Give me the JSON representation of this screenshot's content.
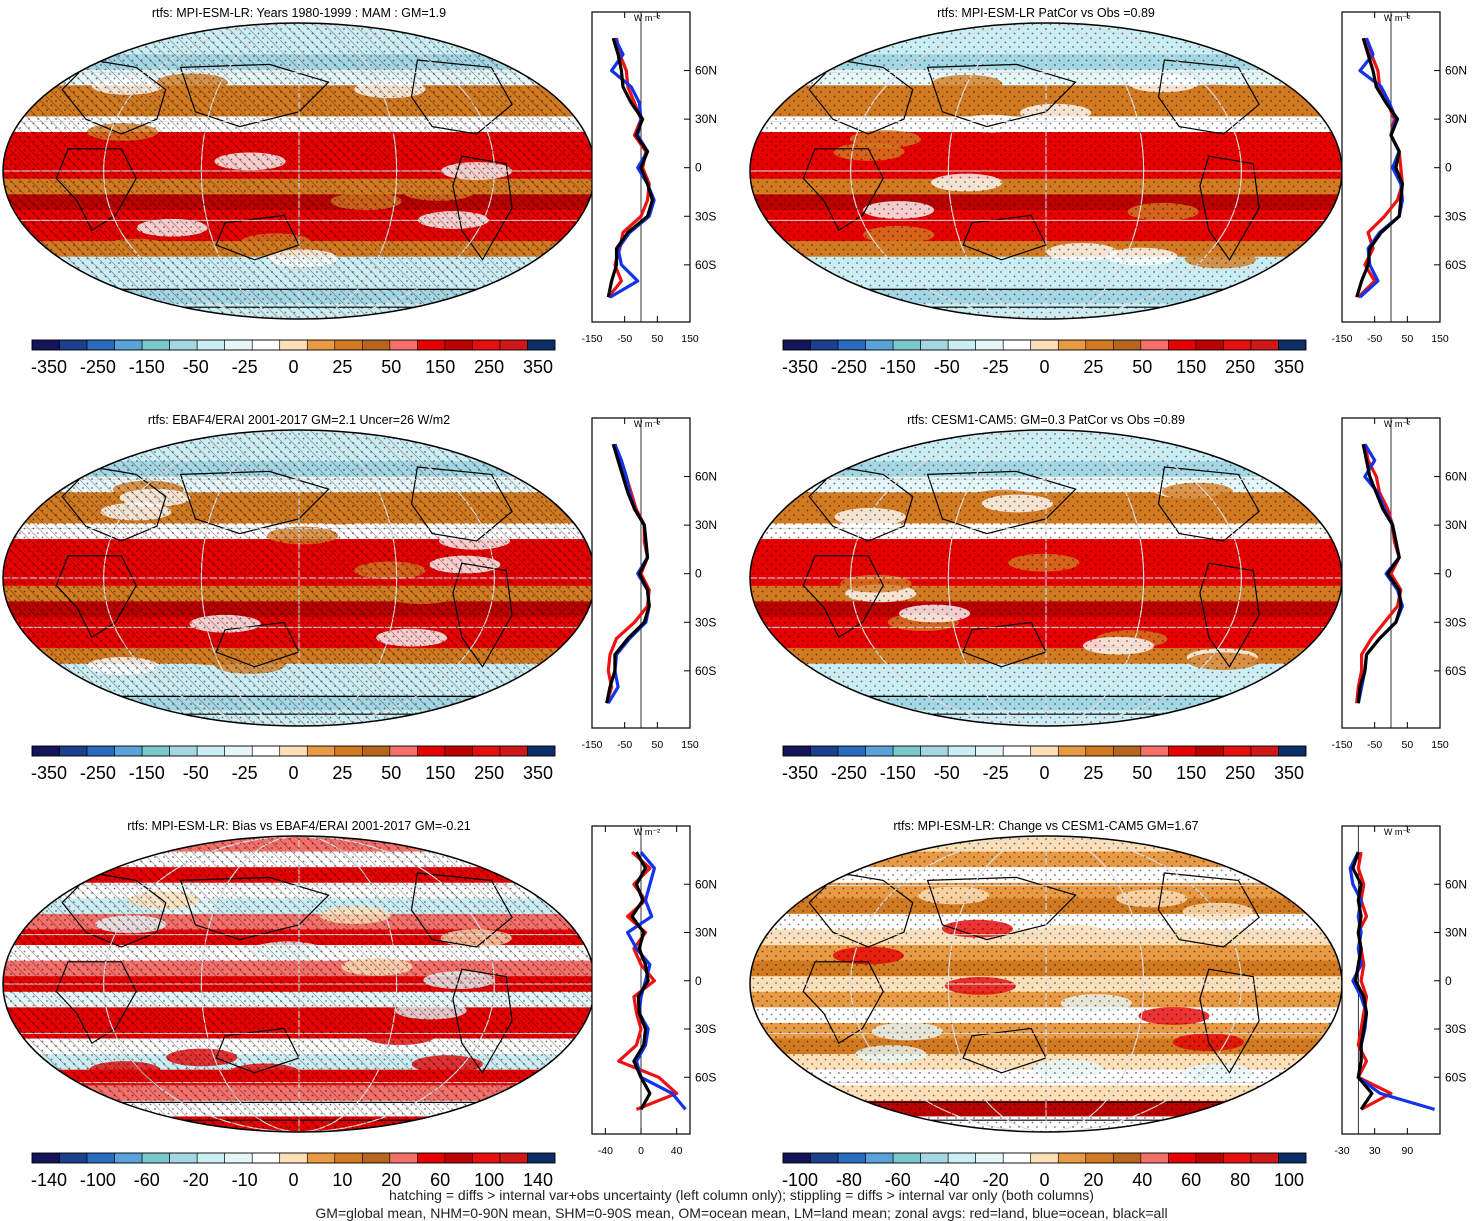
{
  "footer": {
    "line1": "hatching = diffs > internal var+obs uncertainty (left column only); stippling = diffs > internal var only (both columns)",
    "line2": "GM=global mean, NHM=0-90N mean, SHM=0-90S mean, OM=ocean mean, LM=land mean; zonal avgs: red=land, blue=ocean, black=all"
  },
  "colors": {
    "land": "#ee1111",
    "ocean": "#1133ee",
    "all": "#000000",
    "scale": [
      "#14145a",
      "#1c3f8e",
      "#2a6cc0",
      "#5aa2d9",
      "#7cc7cc",
      "#a4d6e4",
      "#cbeef5",
      "#e6f7fa",
      "#ffffff",
      "#fde0b8",
      "#e89a45",
      "#d27a22",
      "#b8651e",
      "#f5706a",
      "#e60000",
      "#bb0000",
      "#e61010",
      "#d01818",
      "#0d2d68"
    ],
    "land_mass": "#ffffff"
  },
  "chart_data": [
    {
      "type": "map",
      "title": "rtfs: MPI-ESM-LR: Years 1980-1999 : MAM : GM=1.9",
      "pattern": "clim",
      "colorbar": [
        "-350",
        "-250",
        "-150",
        "-50",
        "-25",
        "0",
        "25",
        "50",
        "150",
        "250",
        "350"
      ],
      "zonal": {
        "units": "W m⁻²",
        "xlim": [
          -150,
          150
        ],
        "xticks": [
          "-150",
          "-50",
          "50",
          "150"
        ],
        "yticks": [
          "60N",
          "30N",
          "0",
          "30S",
          "60S"
        ],
        "lat": [
          80,
          70,
          60,
          50,
          40,
          30,
          20,
          10,
          0,
          -10,
          -20,
          -30,
          -40,
          -50,
          -60,
          -70,
          -80
        ],
        "all": [
          -85,
          -70,
          -60,
          -55,
          -30,
          5,
          -15,
          20,
          0,
          20,
          35,
          20,
          -40,
          -75,
          -75,
          -90,
          -100
        ],
        "land": [
          -75,
          -65,
          -45,
          -40,
          -20,
          0,
          -20,
          15,
          5,
          25,
          20,
          0,
          -55,
          -65,
          -80,
          -60,
          -100
        ],
        "ocean": [
          -80,
          -55,
          -90,
          -30,
          -5,
          0,
          -10,
          20,
          -10,
          20,
          40,
          25,
          -35,
          -70,
          -60,
          -10,
          -95
        ]
      }
    },
    {
      "type": "map",
      "title": "rtfs: MPI-ESM-LR PatCor vs Obs =0.89",
      "pattern": "clim",
      "colorbar": [
        "-350",
        "-250",
        "-150",
        "-50",
        "-25",
        "0",
        "25",
        "50",
        "150",
        "250",
        "350"
      ],
      "zonal": {
        "units": "W m⁻²",
        "xlim": [
          -150,
          150
        ],
        "xticks": [
          "-150",
          "-50",
          "50",
          "150"
        ],
        "yticks": [
          "60N",
          "30N",
          "0",
          "30S",
          "60S"
        ],
        "lat": [
          80,
          70,
          60,
          50,
          40,
          30,
          20,
          10,
          0,
          -10,
          -20,
          -30,
          -40,
          -50,
          -60,
          -70,
          -80
        ],
        "all": [
          -85,
          -70,
          -55,
          -45,
          -15,
          20,
          0,
          25,
          15,
          35,
          30,
          25,
          -30,
          -65,
          -70,
          -90,
          -105
        ],
        "land": [
          -80,
          -60,
          -40,
          -35,
          -10,
          10,
          0,
          25,
          30,
          35,
          20,
          -20,
          -70,
          -55,
          -80,
          -50,
          -100
        ],
        "ocean": [
          -75,
          -55,
          -95,
          -30,
          -5,
          15,
          0,
          25,
          5,
          30,
          35,
          25,
          -35,
          -70,
          -65,
          -40,
          -95
        ]
      }
    },
    {
      "type": "map",
      "title": "rtfs: EBAF4/ERAI 2001-2017 GM=2.1 Uncer=26 W/m2",
      "pattern": "clim",
      "colorbar": [
        "-350",
        "-250",
        "-150",
        "-50",
        "-25",
        "0",
        "25",
        "50",
        "150",
        "250",
        "350"
      ],
      "zonal": {
        "units": "W m⁻²",
        "xlim": [
          -150,
          150
        ],
        "xticks": [
          "-150",
          "-50",
          "50",
          "150"
        ],
        "yticks": [
          "60N",
          "30N",
          "0",
          "30S",
          "60S"
        ],
        "lat": [
          80,
          70,
          60,
          50,
          40,
          30,
          20,
          10,
          0,
          -10,
          -20,
          -30,
          -40,
          -50,
          -60,
          -70,
          -80
        ],
        "all": [
          -85,
          -70,
          -55,
          -40,
          -20,
          10,
          15,
          20,
          -5,
          20,
          25,
          10,
          -40,
          -80,
          -80,
          -95,
          -105
        ],
        "land": [
          -80,
          -65,
          -45,
          -30,
          -15,
          10,
          10,
          20,
          0,
          25,
          20,
          -20,
          -75,
          -95,
          -100,
          -90,
          -105
        ],
        "ocean": [
          -80,
          -60,
          -45,
          -35,
          -20,
          10,
          15,
          20,
          -10,
          20,
          25,
          15,
          -35,
          -75,
          -80,
          -70,
          -100
        ]
      }
    },
    {
      "type": "map",
      "title": "rtfs: CESM1-CAM5: GM=0.3 PatCor vs Obs =0.89",
      "pattern": "clim",
      "colorbar": [
        "-350",
        "-250",
        "-150",
        "-50",
        "-25",
        "0",
        "25",
        "50",
        "150",
        "250",
        "350"
      ],
      "zonal": {
        "units": "W m⁻²",
        "xlim": [
          -150,
          150
        ],
        "xticks": [
          "-150",
          "-50",
          "50",
          "150"
        ],
        "yticks": [
          "60N",
          "30N",
          "0",
          "30S",
          "60S"
        ],
        "lat": [
          80,
          70,
          60,
          50,
          40,
          30,
          20,
          10,
          0,
          -10,
          -20,
          -30,
          -40,
          -50,
          -60,
          -70,
          -80
        ],
        "all": [
          -85,
          -75,
          -65,
          -45,
          -25,
          5,
          15,
          25,
          -10,
          25,
          30,
          15,
          -35,
          -75,
          -80,
          -95,
          -100
        ],
        "land": [
          -80,
          -70,
          -45,
          -35,
          -10,
          5,
          10,
          25,
          0,
          30,
          20,
          -20,
          -60,
          -90,
          -90,
          -100,
          -105
        ],
        "ocean": [
          -80,
          -50,
          -80,
          -40,
          -20,
          5,
          15,
          25,
          -15,
          20,
          35,
          15,
          -35,
          -75,
          -80,
          -90,
          -100
        ]
      }
    },
    {
      "type": "map",
      "title": "rtfs: MPI-ESM-LR: Bias vs EBAF4/ERAI 2001-2017 GM=-0.21",
      "pattern": "diff",
      "colorbar": [
        "-140",
        "-100",
        "-60",
        "-20",
        "-10",
        "0",
        "10",
        "20",
        "60",
        "100",
        "140"
      ],
      "zonal": {
        "units": "W m⁻²",
        "xlim": [
          -55,
          55
        ],
        "xticks": [
          "-40",
          "0",
          "40"
        ],
        "yticks": [
          "60N",
          "30N",
          "0",
          "30S",
          "60S"
        ],
        "lat": [
          80,
          70,
          60,
          50,
          40,
          30,
          20,
          10,
          0,
          -10,
          -20,
          -30,
          -40,
          -50,
          -60,
          -70,
          -80
        ],
        "all": [
          -5,
          5,
          -5,
          2,
          -10,
          3,
          -2,
          5,
          8,
          -3,
          -2,
          5,
          3,
          -8,
          0,
          10,
          0
        ],
        "land": [
          -10,
          10,
          -8,
          5,
          -15,
          5,
          -8,
          0,
          15,
          -8,
          -5,
          0,
          -5,
          -25,
          20,
          40,
          -5
        ],
        "ocean": [
          0,
          15,
          10,
          5,
          12,
          -15,
          -5,
          10,
          5,
          0,
          -2,
          8,
          5,
          -5,
          0,
          35,
          50
        ]
      }
    },
    {
      "type": "map",
      "title": "rtfs: MPI-ESM-LR: Change vs CESM1-CAM5 GM=1.67",
      "pattern": "diff",
      "colorbar": [
        "-100",
        "-80",
        "-60",
        "-40",
        "-20",
        "0",
        "20",
        "40",
        "60",
        "80",
        "100"
      ],
      "zonal": {
        "units": "W m⁻²",
        "xlim": [
          -30,
          150
        ],
        "xticks": [
          "-30",
          "30",
          "90"
        ],
        "yticks": [
          "60N",
          "30N",
          "0",
          "30S",
          "60S"
        ],
        "lat": [
          80,
          70,
          60,
          50,
          40,
          30,
          20,
          10,
          0,
          -10,
          -20,
          -30,
          -40,
          -50,
          -60,
          -70,
          -80
        ],
        "all": [
          0,
          -10,
          5,
          0,
          5,
          0,
          5,
          0,
          -5,
          10,
          15,
          10,
          5,
          5,
          0,
          25,
          5
        ],
        "land": [
          5,
          0,
          10,
          5,
          15,
          0,
          5,
          10,
          5,
          15,
          10,
          5,
          0,
          15,
          0,
          60,
          5
        ],
        "ocean": [
          0,
          -15,
          -10,
          5,
          0,
          5,
          0,
          5,
          -10,
          5,
          15,
          12,
          5,
          5,
          0,
          40,
          140
        ]
      }
    }
  ]
}
